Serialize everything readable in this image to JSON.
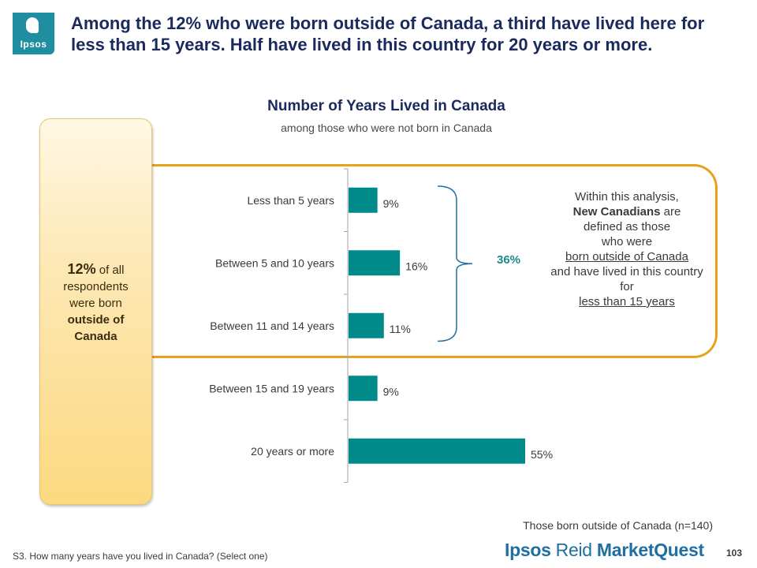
{
  "header": {
    "logo_text": "Ipsos",
    "headline": "Among the 12% who were born outside of Canada, a third have lived here for less than 15 years. Half have lived in this country for 20 years or more."
  },
  "sidebar_pill": {
    "percent": "12%",
    "line1": "of all respondents were born",
    "line2": "outside of Canada"
  },
  "chart_data": {
    "type": "bar",
    "orientation": "horizontal",
    "title": "Number of Years Lived in Canada",
    "subtitle": "among those who were not born in Canada",
    "categories": [
      "Less than 5 years",
      "Between 5 and 10 years",
      "Between 11 and 14 years",
      "Between 15 and 19 years",
      "20 years or more"
    ],
    "values": [
      9,
      16,
      11,
      9,
      55
    ],
    "value_labels": [
      "9%",
      "16%",
      "11%",
      "9%",
      "55%"
    ],
    "bar_color": "#008a8a",
    "bracket": {
      "covers": [
        0,
        1,
        2
      ],
      "label": "36%"
    }
  },
  "callout": {
    "line1": "Within this analysis,",
    "bold": "New Canadians",
    "line2": " are",
    "line3": "defined as those",
    "line4": "who were",
    "underlined1": "born outside of Canada",
    "line5": "and have lived in this country for",
    "underlined2": "less than 15 years"
  },
  "base_note": "Those born outside of Canada (n=140)",
  "footnote": "S3. How many years have you lived in Canada? (Select one)",
  "brand": {
    "part1": "Ipsos",
    "part2": "Reid",
    "part3": "MarketQuest"
  },
  "page_number": "103",
  "colors": {
    "accent_teal": "#008a8a",
    "frame_orange": "#e7a21c",
    "headline_navy": "#1b2a5c"
  }
}
